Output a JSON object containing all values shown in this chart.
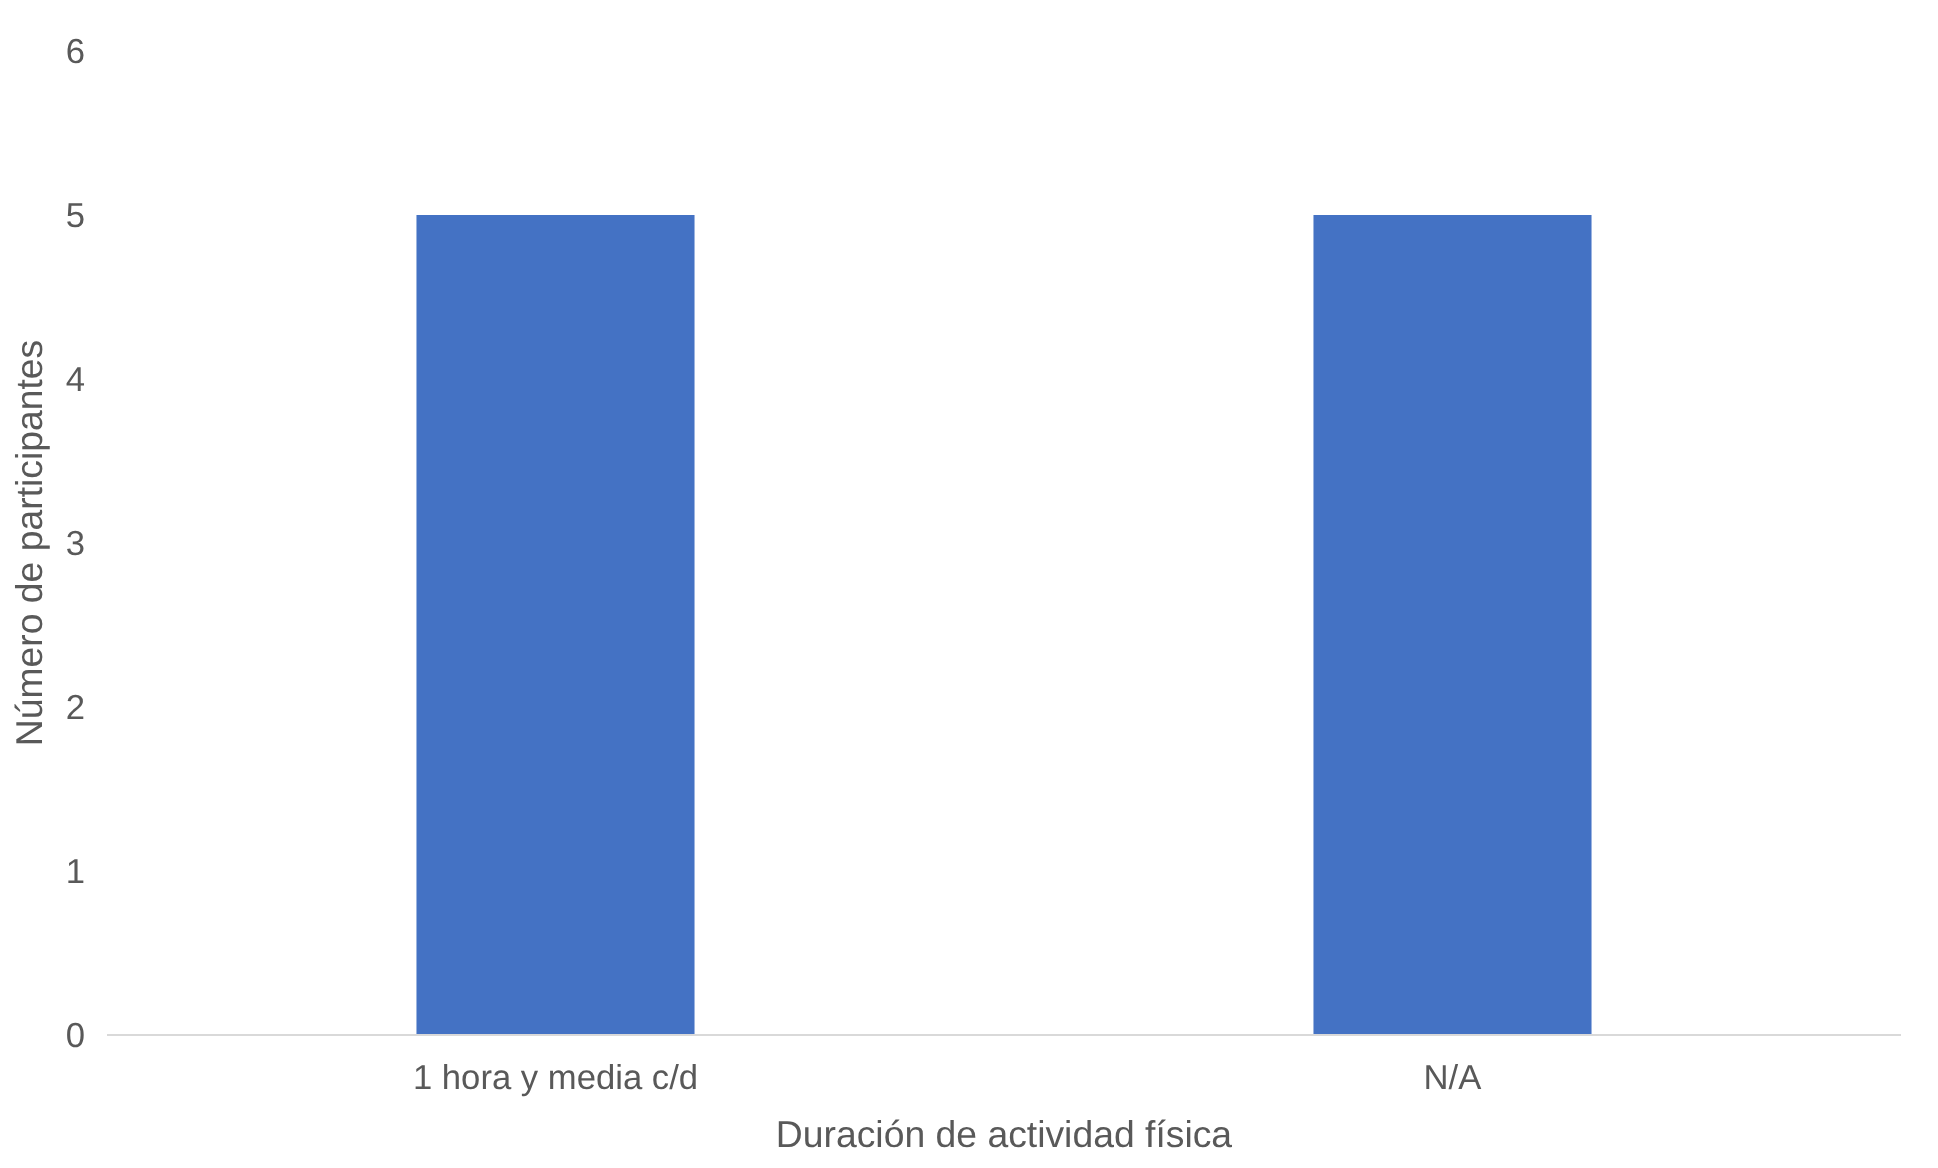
{
  "chart_data": {
    "type": "bar",
    "categories": [
      "1 hora y media c/d",
      "N/A"
    ],
    "values": [
      5,
      5
    ],
    "color": "#4472c4",
    "xlabel": "Duración de actividad física",
    "ylabel": "Número de participantes",
    "ylim": [
      0,
      6
    ],
    "yticks": [
      0,
      1,
      2,
      3,
      4,
      5,
      6
    ],
    "grid": false
  }
}
